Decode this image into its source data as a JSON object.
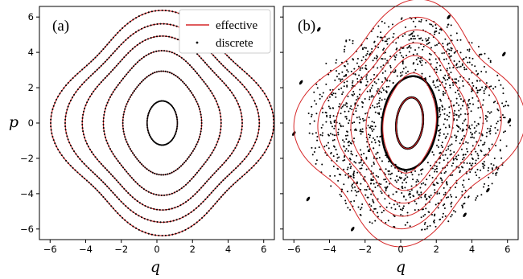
{
  "chart_data": [
    {
      "type": "line",
      "panel_label": "(a)",
      "xlabel": "q",
      "ylabel": "p",
      "xlim": [
        -6.6,
        6.6
      ],
      "ylim": [
        -6.6,
        6.6
      ],
      "xticks": [
        -6,
        -4,
        -2,
        0,
        2,
        4,
        6
      ],
      "yticks": [
        -6,
        -4,
        -2,
        0,
        2,
        4,
        6
      ],
      "grid": false,
      "legend_placement": "top-right",
      "legend": [
        {
          "label": "effective",
          "style": "line",
          "color": "#d62728"
        },
        {
          "label": "discrete",
          "style": "dots",
          "color": "#000000"
        }
      ],
      "series": [
        {
          "name": "effective",
          "color": "#d62728",
          "orbits": [
            {
              "center": [
                0.3,
                0.0
              ],
              "rx": 0.85,
              "ry": 1.25,
              "warp": 0.0
            },
            {
              "center": [
                0.3,
                0.0
              ],
              "rx": 2.15,
              "ry": 2.85,
              "warp": 0.03
            },
            {
              "center": [
                0.3,
                0.0
              ],
              "rx": 3.15,
              "ry": 3.9,
              "warp": 0.05
            },
            {
              "center": [
                0.3,
                0.0
              ],
              "rx": 4.2,
              "ry": 4.6,
              "warp": 0.07
            },
            {
              "center": [
                0.3,
                0.0
              ],
              "rx": 5.05,
              "ry": 5.2,
              "warp": 0.08
            },
            {
              "center": [
                0.3,
                0.0
              ],
              "rx": 5.75,
              "ry": 5.85,
              "warp": 0.09
            }
          ]
        },
        {
          "name": "discrete",
          "color": "#000000",
          "marker": "dot"
        }
      ]
    },
    {
      "type": "scatter",
      "panel_label": "(b)",
      "xlabel": "q",
      "xlim": [
        -6.6,
        6.6
      ],
      "ylim": [
        -6.6,
        6.6
      ],
      "xticks": [
        -6,
        -4,
        -2,
        0,
        2,
        4,
        6
      ],
      "yticks": [
        -6,
        -4,
        -2,
        0,
        2,
        4,
        6
      ],
      "grid": false,
      "series": [
        {
          "name": "effective",
          "color": "#d62728",
          "orbits": [
            {
              "center": [
                0.5,
                0.0
              ],
              "rx": 0.75,
              "ry": 1.45,
              "warp": 0.0,
              "tilt": 0.25
            },
            {
              "center": [
                0.5,
                0.0
              ],
              "rx": 1.45,
              "ry": 2.75,
              "warp": 0.03,
              "tilt": 0.25
            },
            {
              "center": [
                0.5,
                0.0
              ],
              "rx": 2.3,
              "ry": 3.6,
              "warp": 0.06,
              "tilt": 0.25
            },
            {
              "center": [
                0.5,
                0.0
              ],
              "rx": 3.05,
              "ry": 4.2,
              "warp": 0.08,
              "tilt": 0.25
            },
            {
              "center": [
                0.5,
                0.0
              ],
              "rx": 3.75,
              "ry": 4.8,
              "warp": 0.1,
              "tilt": 0.25
            },
            {
              "center": [
                0.5,
                0.0
              ],
              "rx": 4.6,
              "ry": 5.35,
              "warp": 0.12,
              "tilt": 0.25
            },
            {
              "center": [
                0.5,
                0.0
              ],
              "rx": 5.75,
              "ry": 6.2,
              "warp": 0.13,
              "tilt": 0.25
            }
          ]
        },
        {
          "name": "discrete",
          "color": "#000000",
          "marker": "dot",
          "regular_orbits": [
            {
              "center": [
                0.5,
                0.0
              ],
              "rx": 0.75,
              "ry": 1.45,
              "tilt": 0.25
            },
            {
              "center": [
                0.5,
                0.0
              ],
              "rx": 1.55,
              "ry": 2.65,
              "tilt": 0.25
            }
          ],
          "chaotic_region": {
            "q_range": [
              -6.2,
              6.2
            ],
            "p_range": [
              -6.2,
              6.2
            ],
            "inner_exclusion": {
              "rx": 1.6,
              "ry": 2.7
            },
            "outer_bound": {
              "rx": 5.7,
              "ry": 6.1
            }
          },
          "islands": [
            [
              -4.6,
              5.3
            ],
            [
              5.8,
              3.9
            ],
            [
              6.1,
              0.1
            ],
            [
              4.9,
              -3.8
            ],
            [
              -5.6,
              2.3
            ],
            [
              -5.2,
              -4.3
            ],
            [
              -2.7,
              -6.0
            ],
            [
              3.6,
              -5.2
            ],
            [
              2.7,
              6.0
            ],
            [
              -6.0,
              -0.6
            ]
          ]
        }
      ]
    }
  ]
}
